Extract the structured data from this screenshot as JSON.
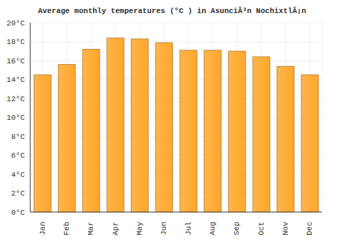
{
  "chart_data": {
    "type": "bar",
    "title": "Average monthly temperatures (°C ) in AsunciÃ³n NochixtlÃ¡n",
    "categories": [
      "Jan",
      "Feb",
      "Mar",
      "Apr",
      "May",
      "Jun",
      "Jul",
      "Aug",
      "Sep",
      "Oct",
      "Nov",
      "Dec"
    ],
    "values": [
      14.5,
      15.6,
      17.2,
      18.4,
      18.3,
      17.9,
      17.1,
      17.1,
      17.0,
      16.4,
      15.4,
      14.5
    ],
    "color": "#ffa72b",
    "ylim": [
      0,
      20
    ],
    "yticks": [
      {
        "value": 0,
        "label": "0°C"
      },
      {
        "value": 2,
        "label": "2°C"
      },
      {
        "value": 4,
        "label": "4°C"
      },
      {
        "value": 6,
        "label": "6°C"
      },
      {
        "value": 8,
        "label": "8°C"
      },
      {
        "value": 10,
        "label": "10°C"
      },
      {
        "value": 12,
        "label": "12°C"
      },
      {
        "value": 14,
        "label": "14°C"
      },
      {
        "value": 16,
        "label": "16°C"
      },
      {
        "value": 18,
        "label": "18°C"
      },
      {
        "value": 20,
        "label": "20°C"
      }
    ],
    "grid": true
  }
}
